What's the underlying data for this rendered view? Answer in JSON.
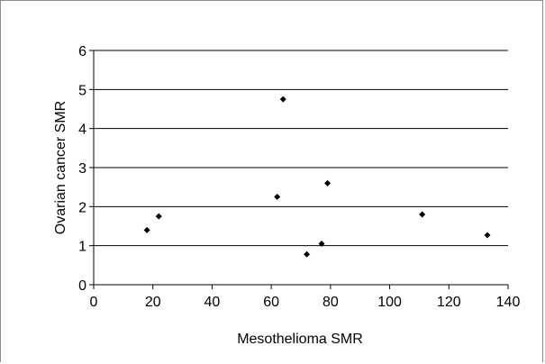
{
  "chart_data": {
    "type": "scatter",
    "title": "",
    "xlabel": "Mesothelioma SMR",
    "ylabel": "Ovarian cancer SMR",
    "xlim": [
      0,
      140
    ],
    "ylim": [
      0,
      6
    ],
    "x_ticks": [
      0,
      20,
      40,
      60,
      80,
      100,
      120,
      140
    ],
    "y_ticks": [
      0,
      1,
      2,
      3,
      4,
      5,
      6
    ],
    "grid": "horizontal",
    "legend": "none",
    "marker": "diamond",
    "series": [
      {
        "points": [
          {
            "x": 18,
            "y": 1.4
          },
          {
            "x": 22,
            "y": 1.75
          },
          {
            "x": 62,
            "y": 2.25
          },
          {
            "x": 64,
            "y": 4.75
          },
          {
            "x": 72,
            "y": 0.78
          },
          {
            "x": 77,
            "y": 1.05
          },
          {
            "x": 79,
            "y": 2.6
          },
          {
            "x": 111,
            "y": 1.8
          },
          {
            "x": 133,
            "y": 1.27
          }
        ]
      }
    ]
  },
  "colors": {
    "marker": "#000000",
    "gridline": "#000000",
    "axis": "#000000",
    "frame": "#8c8c8c"
  }
}
